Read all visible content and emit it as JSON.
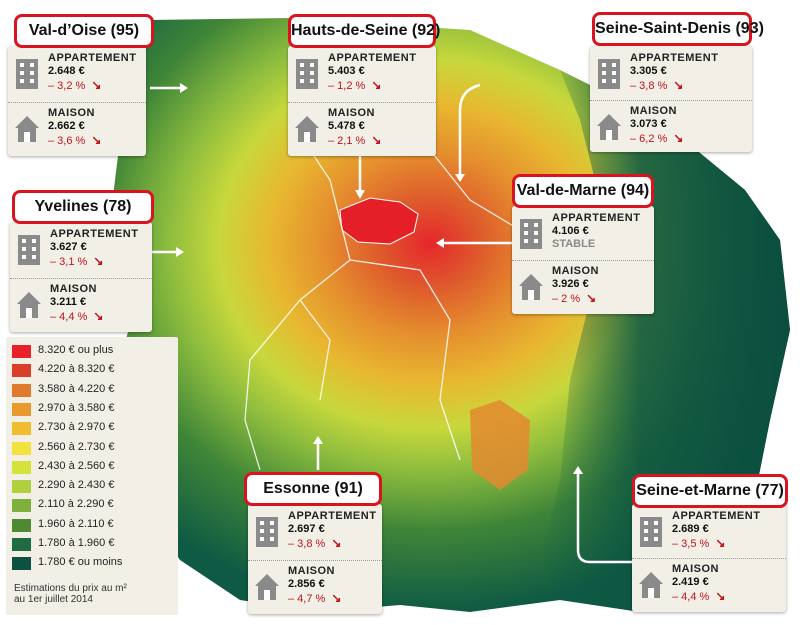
{
  "departments": [
    {
      "key": "val_doise",
      "title": "Val-d’Oise (95)",
      "appart": {
        "label": "APPARTEMENT",
        "price": "2.648 €",
        "change": "– 3,2 %"
      },
      "maison": {
        "label": "MAISON",
        "price": "2.662 €",
        "change": "– 3,6 %"
      }
    },
    {
      "key": "hauts_de_seine",
      "title": "Hauts-de-Seine (92)",
      "appart": {
        "label": "APPARTEMENT",
        "price": "5.403 €",
        "change": "– 1,2 %"
      },
      "maison": {
        "label": "MAISON",
        "price": "5.478 €",
        "change": "– 2,1 %"
      }
    },
    {
      "key": "seine_saint_denis",
      "title": "Seine-Saint-Denis (93)",
      "appart": {
        "label": "APPARTEMENT",
        "price": "3.305 €",
        "change": "– 3,8 %"
      },
      "maison": {
        "label": "MAISON",
        "price": "3.073 €",
        "change": "– 6,2 %"
      }
    },
    {
      "key": "yvelines",
      "title": "Yvelines (78)",
      "appart": {
        "label": "APPARTEMENT",
        "price": "3.627 €",
        "change": "– 3,1 %"
      },
      "maison": {
        "label": "MAISON",
        "price": "3.211 €",
        "change": "– 4,4 %"
      }
    },
    {
      "key": "val_de_marne",
      "title": "Val-de-Marne (94)",
      "appart": {
        "label": "APPARTEMENT",
        "price": "4.106 €",
        "change": "STABLE"
      },
      "maison": {
        "label": "MAISON",
        "price": "3.926 €",
        "change": "– 2 %"
      }
    },
    {
      "key": "essonne",
      "title": "Essonne (91)",
      "appart": {
        "label": "APPARTEMENT",
        "price": "2.697 €",
        "change": "– 3,8 %"
      },
      "maison": {
        "label": "MAISON",
        "price": "2.856 €",
        "change": "– 4,7 %"
      }
    },
    {
      "key": "seine_et_marne",
      "title": "Seine-et-Marne (77)",
      "appart": {
        "label": "APPARTEMENT",
        "price": "2.689 €",
        "change": "– 3,5 %"
      },
      "maison": {
        "label": "MAISON",
        "price": "2.419 €",
        "change": "– 4,4 %"
      }
    }
  ],
  "legend": {
    "items": [
      {
        "label": "8.320 € ou plus",
        "color": "#e8202a"
      },
      {
        "label": "4.220 à 8.320 €",
        "color": "#d8402a"
      },
      {
        "label": "3.580 à 4.220 €",
        "color": "#e07a2c"
      },
      {
        "label": "2.970 à 3.580 €",
        "color": "#e99a2e"
      },
      {
        "label": "2.730 à 2.970 €",
        "color": "#f0bc30"
      },
      {
        "label": "2.560 à 2.730 €",
        "color": "#f1e23e"
      },
      {
        "label": "2.430 à 2.560 €",
        "color": "#d6e23c"
      },
      {
        "label": "2.290 à 2.430 €",
        "color": "#b0d040"
      },
      {
        "label": "2.110 à 2.290 €",
        "color": "#7eb03c"
      },
      {
        "label": "1.960 à 2.110 €",
        "color": "#4e8a34"
      },
      {
        "label": "1.780 à 1.960 €",
        "color": "#1f6b43"
      },
      {
        "label": "1.780 € ou moins",
        "color": "#0d5140"
      }
    ],
    "note_line1": "Estimations du prix au m²",
    "note_line2": "au 1er juillet 2014"
  },
  "icons": {
    "appartement": "apartment-building-icon",
    "maison": "house-icon",
    "trend_down": "arrow-down-right-icon"
  }
}
